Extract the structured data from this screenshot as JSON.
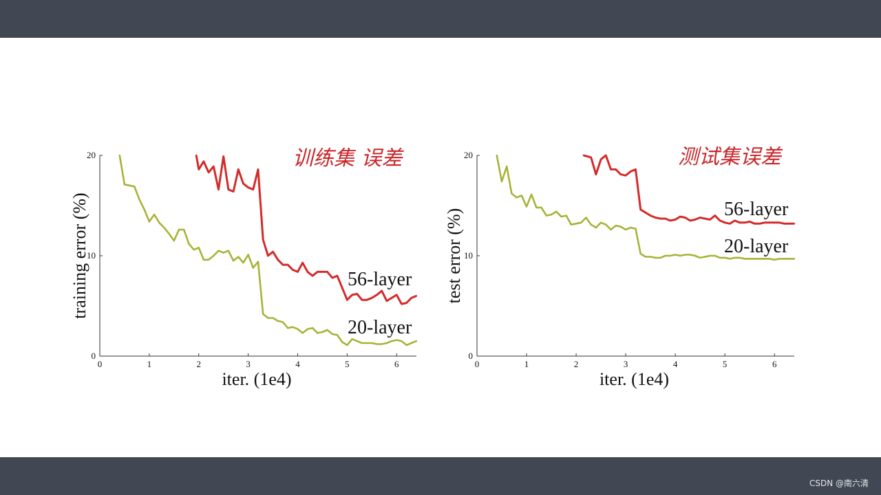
{
  "watermark": "CSDN @南六清",
  "chart_data": [
    {
      "type": "line",
      "xlabel": "iter. (1e4)",
      "ylabel": "training error (%)",
      "annotation": "训练集 误差",
      "xlim": [
        0,
        6.4
      ],
      "ylim": [
        0,
        20
      ],
      "xticks": [
        "0",
        "1",
        "2",
        "3",
        "4",
        "5",
        "6"
      ],
      "yticks": [
        "0",
        "10",
        "20"
      ],
      "series": [
        {
          "name": "56-layer",
          "color": "#d42a2a",
          "x": [
            1.95,
            2.0,
            2.1,
            2.2,
            2.3,
            2.4,
            2.5,
            2.6,
            2.7,
            2.8,
            2.9,
            3.0,
            3.1,
            3.2,
            3.3,
            3.4,
            3.5,
            3.6,
            3.7,
            3.8,
            3.9,
            4.0,
            4.1,
            4.2,
            4.3,
            4.4,
            4.5,
            4.6,
            4.7,
            4.8,
            4.9,
            5.0,
            5.1,
            5.2,
            5.3,
            5.4,
            5.5,
            5.6,
            5.7,
            5.8,
            5.9,
            6.0,
            6.1,
            6.2,
            6.3,
            6.4
          ],
          "y": [
            20,
            18.6,
            19.4,
            18.3,
            18.9,
            16.6,
            19.9,
            16.6,
            16.4,
            18.6,
            17.2,
            16.8,
            16.6,
            18.6,
            11.6,
            10.0,
            10.4,
            9.6,
            9.1,
            9.1,
            8.6,
            8.4,
            9.3,
            8.4,
            8.0,
            8.4,
            8.4,
            8.4,
            7.8,
            8.0,
            6.8,
            5.6,
            6.1,
            6.2,
            5.6,
            5.6,
            5.8,
            6.1,
            6.5,
            5.5,
            5.8,
            6.1,
            5.2,
            5.3,
            5.8,
            6.0
          ]
        },
        {
          "name": "20-layer",
          "color": "#a8b236",
          "x": [
            0.4,
            0.5,
            0.6,
            0.7,
            0.8,
            0.9,
            1.0,
            1.1,
            1.2,
            1.3,
            1.4,
            1.5,
            1.6,
            1.7,
            1.8,
            1.9,
            2.0,
            2.1,
            2.2,
            2.3,
            2.4,
            2.5,
            2.6,
            2.7,
            2.8,
            2.9,
            3.0,
            3.1,
            3.2,
            3.3,
            3.4,
            3.5,
            3.6,
            3.7,
            3.8,
            3.9,
            4.0,
            4.1,
            4.2,
            4.3,
            4.4,
            4.5,
            4.6,
            4.7,
            4.8,
            4.9,
            5.0,
            5.1,
            5.2,
            5.3,
            5.4,
            5.5,
            5.6,
            5.7,
            5.8,
            5.9,
            6.0,
            6.1,
            6.2,
            6.3,
            6.4
          ],
          "y": [
            20,
            17.1,
            17.0,
            16.9,
            15.6,
            14.6,
            13.4,
            14.1,
            13.3,
            12.8,
            12.2,
            11.5,
            12.6,
            12.6,
            11.2,
            10.6,
            10.8,
            9.6,
            9.6,
            10.0,
            10.5,
            10.3,
            10.5,
            9.5,
            9.9,
            9.3,
            10.1,
            8.8,
            9.4,
            4.2,
            3.8,
            3.8,
            3.5,
            3.4,
            2.8,
            2.9,
            2.7,
            2.3,
            2.7,
            2.8,
            2.3,
            2.4,
            2.6,
            2.2,
            2.1,
            1.4,
            1.1,
            1.7,
            1.5,
            1.3,
            1.3,
            1.3,
            1.2,
            1.2,
            1.3,
            1.5,
            1.6,
            1.5,
            1.1,
            1.3,
            1.5
          ]
        }
      ]
    },
    {
      "type": "line",
      "xlabel": "iter. (1e4)",
      "ylabel": "test error (%)",
      "annotation": "测试集误差",
      "xlim": [
        0,
        6.4
      ],
      "ylim": [
        0,
        20
      ],
      "xticks": [
        "0",
        "1",
        "2",
        "3",
        "4",
        "5",
        "6"
      ],
      "yticks": [
        "0",
        "10",
        "20"
      ],
      "series": [
        {
          "name": "56-layer",
          "color": "#d42a2a",
          "x": [
            2.15,
            2.3,
            2.4,
            2.5,
            2.6,
            2.7,
            2.8,
            2.9,
            3.0,
            3.1,
            3.2,
            3.3,
            3.4,
            3.5,
            3.6,
            3.7,
            3.8,
            3.9,
            4.0,
            4.1,
            4.2,
            4.3,
            4.4,
            4.5,
            4.6,
            4.7,
            4.8,
            4.9,
            5.0,
            5.1,
            5.2,
            5.3,
            5.4,
            5.5,
            5.6,
            5.7,
            5.8,
            5.9,
            6.0,
            6.1,
            6.2,
            6.3,
            6.4
          ],
          "y": [
            20,
            19.8,
            18.1,
            19.6,
            20,
            18.6,
            18.6,
            18.1,
            18.0,
            18.4,
            18.6,
            14.6,
            14.3,
            14.0,
            13.8,
            13.7,
            13.7,
            13.5,
            13.6,
            13.9,
            13.8,
            13.5,
            13.6,
            13.8,
            13.7,
            13.6,
            14.0,
            13.5,
            13.3,
            13.2,
            13.5,
            13.3,
            13.3,
            13.4,
            13.2,
            13.2,
            13.3,
            13.3,
            13.3,
            13.3,
            13.2,
            13.2,
            13.2
          ]
        },
        {
          "name": "20-layer",
          "color": "#a8b236",
          "x": [
            0.4,
            0.5,
            0.6,
            0.7,
            0.8,
            0.9,
            1.0,
            1.1,
            1.2,
            1.3,
            1.4,
            1.5,
            1.6,
            1.7,
            1.8,
            1.9,
            2.0,
            2.1,
            2.2,
            2.3,
            2.4,
            2.5,
            2.6,
            2.7,
            2.8,
            2.9,
            3.0,
            3.1,
            3.2,
            3.3,
            3.4,
            3.5,
            3.6,
            3.7,
            3.8,
            3.9,
            4.0,
            4.1,
            4.2,
            4.3,
            4.4,
            4.5,
            4.6,
            4.7,
            4.8,
            4.9,
            5.0,
            5.1,
            5.2,
            5.3,
            5.4,
            5.5,
            5.6,
            5.7,
            5.8,
            5.9,
            6.0,
            6.1,
            6.2,
            6.3,
            6.4
          ],
          "y": [
            20,
            17.4,
            18.9,
            16.2,
            15.8,
            16.0,
            14.9,
            16.1,
            14.8,
            14.8,
            14.0,
            14.1,
            14.4,
            13.9,
            14.0,
            13.1,
            13.2,
            13.3,
            13.8,
            13.1,
            12.8,
            13.3,
            13.1,
            12.6,
            13.0,
            12.9,
            12.6,
            12.8,
            12.7,
            10.2,
            9.9,
            9.9,
            9.8,
            9.8,
            10.0,
            10.0,
            10.1,
            10.0,
            10.1,
            10.1,
            10.0,
            9.8,
            9.9,
            10.0,
            10.0,
            9.8,
            9.8,
            9.7,
            9.8,
            9.8,
            9.7,
            9.7,
            9.7,
            9.7,
            9.7,
            9.7,
            9.6,
            9.7,
            9.7,
            9.7,
            9.7
          ]
        }
      ]
    }
  ]
}
